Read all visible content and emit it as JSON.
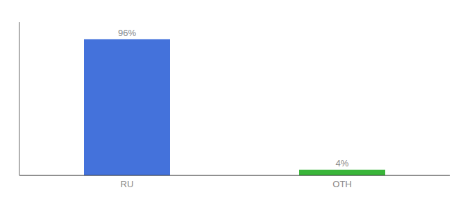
{
  "chart_data": {
    "type": "bar",
    "categories": [
      "RU",
      "OTH"
    ],
    "values": [
      96,
      4
    ],
    "value_labels": [
      "96%",
      "4%"
    ],
    "colors": [
      "#4472db",
      "#3ab53a"
    ],
    "ylim": [
      0,
      108
    ],
    "data_labels": true,
    "tick_labels": "x",
    "grid": false
  }
}
